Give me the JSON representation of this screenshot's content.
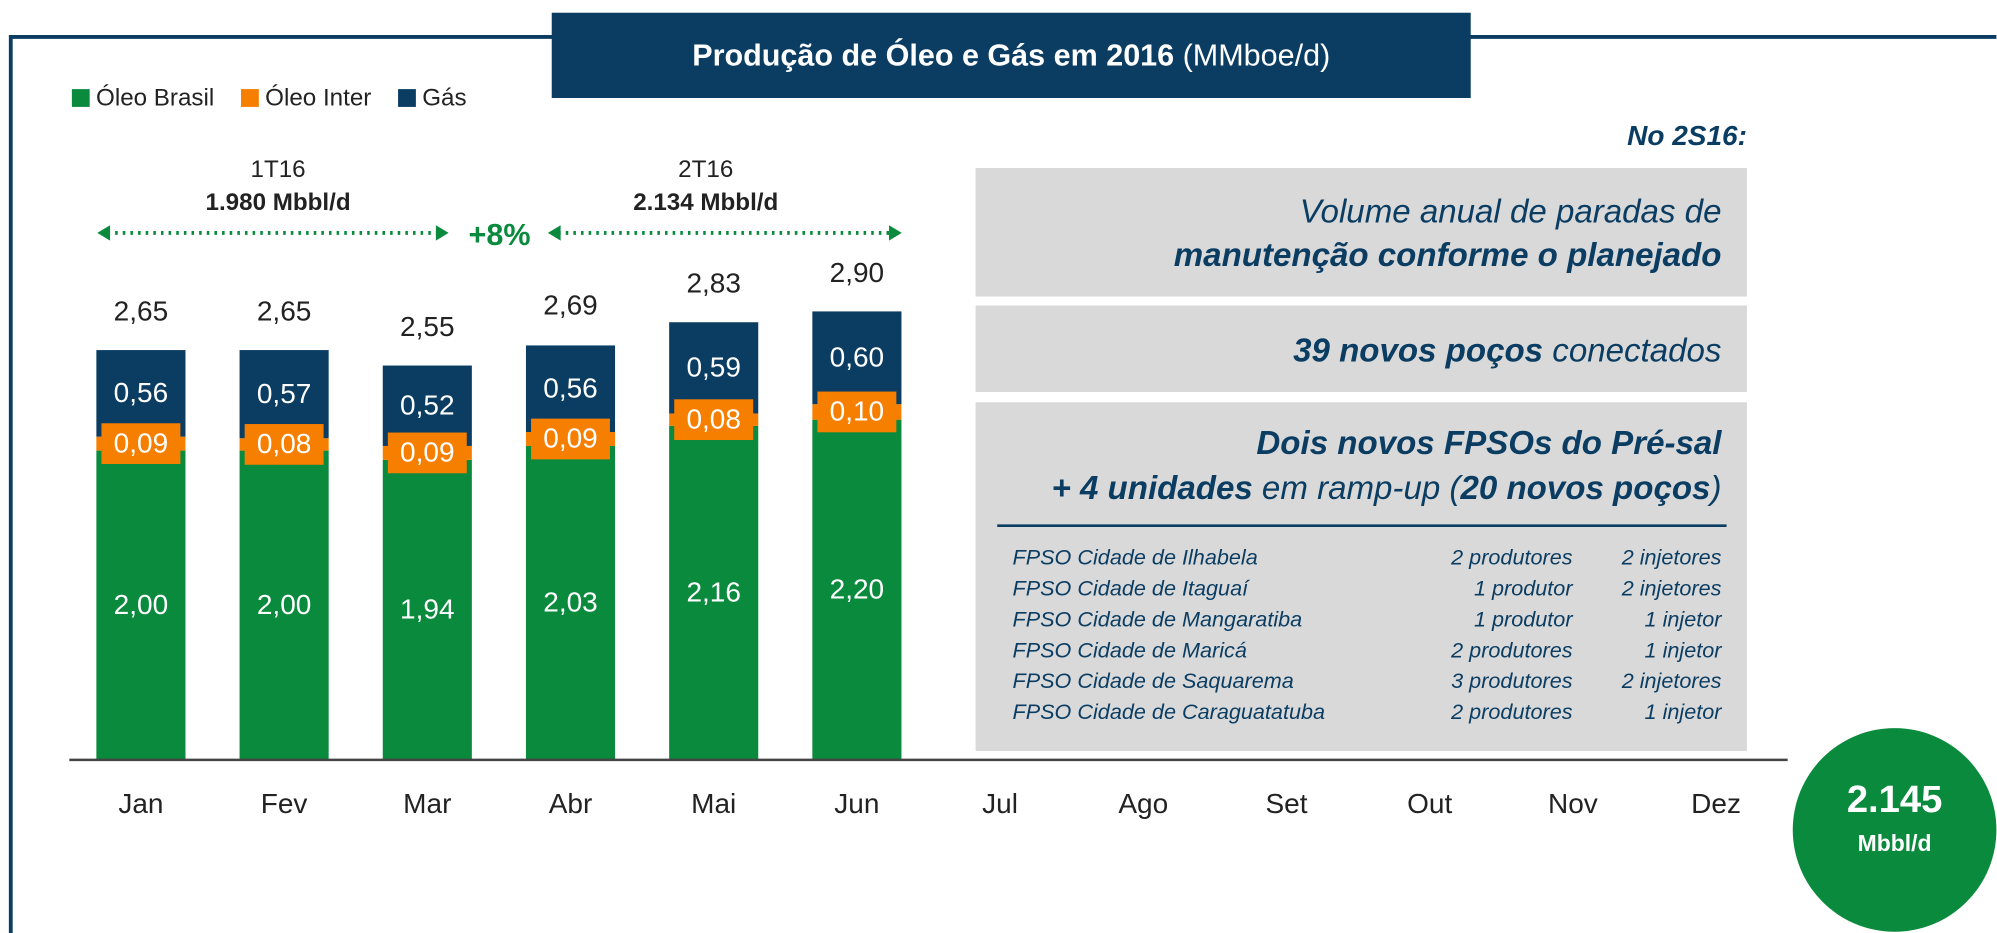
{
  "chart_data": {
    "type": "bar",
    "stacked": true,
    "title": "Produção de Óleo e Gás em 2016",
    "title_unit": "(MMboe/d)",
    "categories": [
      "Jan",
      "Fev",
      "Mar",
      "Abr",
      "Mai",
      "Jun",
      "Jul",
      "Ago",
      "Set",
      "Out",
      "Nov",
      "Dez"
    ],
    "ylim": [
      0,
      4
    ],
    "legend": "top-left",
    "series": [
      {
        "name": "Óleo Brasil",
        "color": "#0a8a3c",
        "values": [
          2.0,
          2.0,
          1.94,
          2.03,
          2.16,
          2.2,
          null,
          null,
          null,
          null,
          null,
          null
        ],
        "value_labels": [
          "2,00",
          "2,00",
          "1,94",
          "2,03",
          "2,16",
          "2,20",
          null,
          null,
          null,
          null,
          null,
          null
        ]
      },
      {
        "name": "Óleo Inter",
        "color": "#f77f00",
        "values": [
          0.09,
          0.08,
          0.09,
          0.09,
          0.08,
          0.1,
          null,
          null,
          null,
          null,
          null,
          null
        ],
        "value_labels": [
          "0,09",
          "0,08",
          "0,09",
          "0,09",
          "0,08",
          "0,10",
          null,
          null,
          null,
          null,
          null,
          null
        ]
      },
      {
        "name": "Gás",
        "color": "#0b3d63",
        "values": [
          0.56,
          0.57,
          0.52,
          0.56,
          0.59,
          0.6,
          null,
          null,
          null,
          null,
          null,
          null
        ],
        "value_labels": [
          "0,56",
          "0,57",
          "0,52",
          "0,56",
          "0,59",
          "0,60",
          null,
          null,
          null,
          null,
          null,
          null
        ]
      }
    ],
    "totals": [
      2.65,
      2.65,
      2.55,
      2.69,
      2.83,
      2.9,
      null,
      null,
      null,
      null,
      null,
      null
    ],
    "total_labels": [
      "2,65",
      "2,65",
      "2,55",
      "2,69",
      "2,83",
      "2,90",
      null,
      null,
      null,
      null,
      null,
      null
    ],
    "annotations": {
      "period1": "1T16",
      "period1_value": "1.980 Mbbl/d",
      "period2": "2T16",
      "period2_value": "2.134 Mbbl/d",
      "growth": "+8%"
    }
  },
  "panel": {
    "heading": "No 2S16:",
    "box1": {
      "line1": "Volume anual de paradas de",
      "line2": "manutenção conforme o planejado"
    },
    "box2": {
      "bold": "39 novos poços",
      "rest": " conectados"
    },
    "box3": {
      "line1": "Dois novos FPSOs do Pré-sal",
      "bold1": "+ 4 unidades",
      "mid": " em ramp-up (",
      "bold2": "20 novos poços",
      "end": ")"
    },
    "table": {
      "rows": [
        [
          "FPSO Cidade de Ilhabela",
          "2 produtores",
          "2 injetores"
        ],
        [
          "FPSO Cidade de Itaguaí",
          "1 produtor",
          "2 injetores"
        ],
        [
          "FPSO Cidade de Mangaratiba",
          "1 produtor",
          "1 injetor"
        ],
        [
          "FPSO Cidade de Maricá",
          "2 produtores",
          "1 injetor"
        ],
        [
          "FPSO Cidade de Saquarema",
          "3 produtores",
          "2 injetores"
        ],
        [
          "FPSO Cidade de Caraguatatuba",
          "2 produtores",
          "1 injetor"
        ]
      ]
    }
  },
  "badge": {
    "value": "2.145",
    "unit": "Mbbl/d"
  }
}
